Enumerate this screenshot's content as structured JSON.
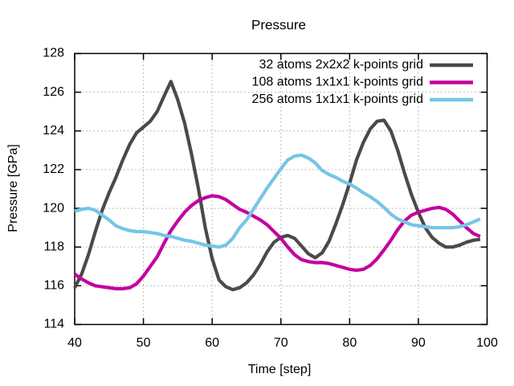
{
  "title": "Pressure",
  "colors": {
    "series_gray": "#4a4a4a",
    "series_magenta": "#c4009e",
    "series_cyan": "#76c5e6",
    "grid": "#a6a6a6",
    "axis": "#000000",
    "background": "#ffffff"
  },
  "chart_data": {
    "type": "line",
    "title": "Pressure",
    "xlabel": "Time [step]",
    "ylabel": "Pressure [GPa]",
    "xlim": [
      40,
      100
    ],
    "ylim": [
      114,
      128
    ],
    "xticks": [
      40,
      50,
      60,
      70,
      80,
      90,
      100
    ],
    "yticks": [
      114,
      116,
      118,
      120,
      122,
      124,
      126,
      128
    ],
    "grid": true,
    "grid_style": "dotted",
    "legend_position": "top-right-inside",
    "x": [
      40,
      41,
      42,
      43,
      44,
      45,
      46,
      47,
      48,
      49,
      50,
      51,
      52,
      53,
      54,
      55,
      56,
      57,
      58,
      59,
      60,
      61,
      62,
      63,
      64,
      65,
      66,
      67,
      68,
      69,
      70,
      71,
      72,
      73,
      74,
      75,
      76,
      77,
      78,
      79,
      80,
      81,
      82,
      83,
      84,
      85,
      86,
      87,
      88,
      89,
      90,
      91,
      92,
      93,
      94,
      95,
      96,
      97,
      98,
      99
    ],
    "series": [
      {
        "name": "32 atoms 2x2x2 k-points grid",
        "color": "#4a4a4a",
        "values": [
          115.9,
          116.6,
          117.6,
          118.8,
          119.9,
          120.8,
          121.6,
          122.5,
          123.3,
          123.9,
          124.2,
          124.5,
          125.0,
          125.8,
          126.55,
          125.6,
          124.4,
          122.8,
          121.0,
          119.0,
          117.4,
          116.3,
          115.95,
          115.8,
          115.9,
          116.15,
          116.55,
          117.1,
          117.75,
          118.25,
          118.5,
          118.6,
          118.45,
          118.05,
          117.65,
          117.45,
          117.7,
          118.3,
          119.2,
          120.2,
          121.3,
          122.5,
          123.4,
          124.1,
          124.5,
          124.55,
          124.0,
          123.0,
          121.8,
          120.7,
          119.8,
          119.0,
          118.5,
          118.2,
          118.0,
          118.0,
          118.1,
          118.25,
          118.35,
          118.4
        ]
      },
      {
        "name": "108 atoms 1x1x1 k-points grid",
        "color": "#c4009e",
        "values": [
          116.6,
          116.35,
          116.15,
          116.0,
          115.95,
          115.9,
          115.85,
          115.85,
          115.9,
          116.1,
          116.5,
          117.0,
          117.5,
          118.2,
          118.85,
          119.35,
          119.8,
          120.15,
          120.4,
          120.55,
          120.65,
          120.6,
          120.45,
          120.2,
          119.95,
          119.8,
          119.6,
          119.4,
          119.15,
          118.8,
          118.45,
          118.0,
          117.6,
          117.35,
          117.25,
          117.2,
          117.2,
          117.15,
          117.05,
          116.95,
          116.85,
          116.8,
          116.85,
          117.05,
          117.4,
          117.85,
          118.35,
          118.9,
          119.35,
          119.65,
          119.8,
          119.9,
          120.0,
          120.05,
          119.95,
          119.7,
          119.35,
          119.0,
          118.7,
          118.55
        ]
      },
      {
        "name": "256 atoms 1x1x1 k-points grid",
        "color": "#76c5e6",
        "values": [
          119.85,
          119.95,
          120.0,
          119.9,
          119.65,
          119.4,
          119.1,
          118.95,
          118.85,
          118.8,
          118.8,
          118.75,
          118.7,
          118.6,
          118.55,
          118.45,
          118.35,
          118.3,
          118.2,
          118.1,
          118.05,
          118.0,
          118.1,
          118.45,
          119.0,
          119.4,
          119.95,
          120.5,
          121.05,
          121.55,
          122.05,
          122.5,
          122.7,
          122.75,
          122.6,
          122.35,
          121.95,
          121.75,
          121.6,
          121.4,
          121.25,
          121.05,
          120.8,
          120.6,
          120.35,
          120.05,
          119.7,
          119.45,
          119.3,
          119.15,
          119.1,
          119.05,
          119.0,
          119.0,
          119.0,
          119.0,
          119.05,
          119.15,
          119.3,
          119.45
        ]
      }
    ]
  }
}
